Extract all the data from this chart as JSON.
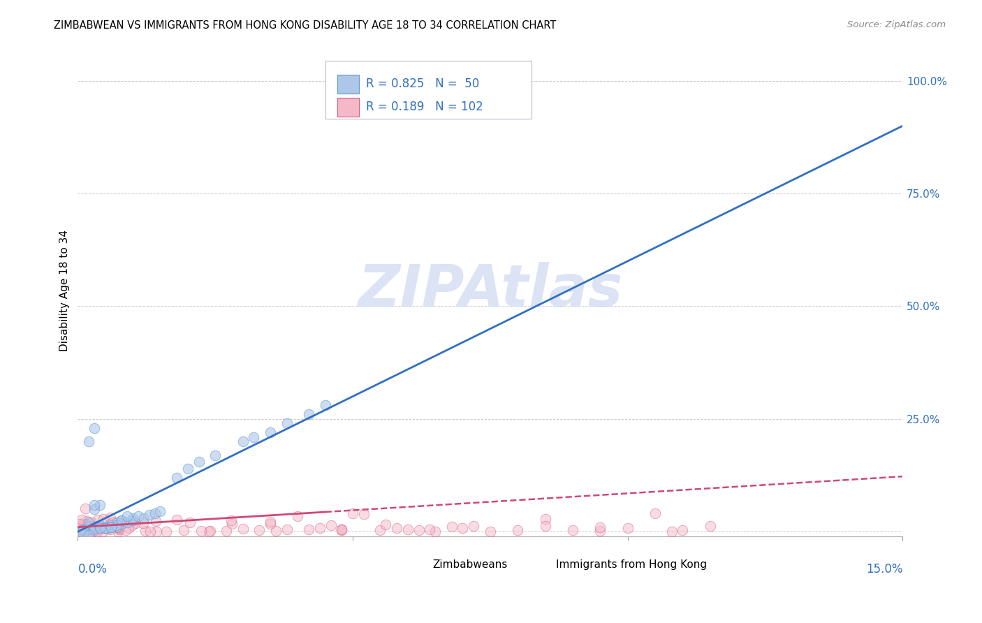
{
  "title": "ZIMBABWEAN VS IMMIGRANTS FROM HONG KONG DISABILITY AGE 18 TO 34 CORRELATION CHART",
  "source": "Source: ZipAtlas.com",
  "ylabel": "Disability Age 18 to 34",
  "xlim": [
    0.0,
    0.15
  ],
  "ylim": [
    -0.01,
    1.08
  ],
  "series1_color": "#aec6e8",
  "series1_edge": "#5b9bd5",
  "series2_color": "#f4b8c8",
  "series2_edge": "#d06080",
  "line1_color": "#3070c0",
  "line2_color": "#d04878",
  "legend_R1": "0.825",
  "legend_N1": "50",
  "legend_R2": "0.189",
  "legend_N2": "102",
  "legend_label1": "Zimbabweans",
  "legend_label2": "Immigrants from Hong Kong",
  "watermark": "ZIPAtlas",
  "watermark_color": "#ccd8f0",
  "background_color": "#ffffff",
  "grid_color": "#cccccc",
  "title_fontsize": 10.5,
  "blue_text_color": "#3070c0",
  "line1_slope": 6.0,
  "line1_intercept": 0.0,
  "line2_slope": 0.8,
  "line2_intercept": 0.01
}
